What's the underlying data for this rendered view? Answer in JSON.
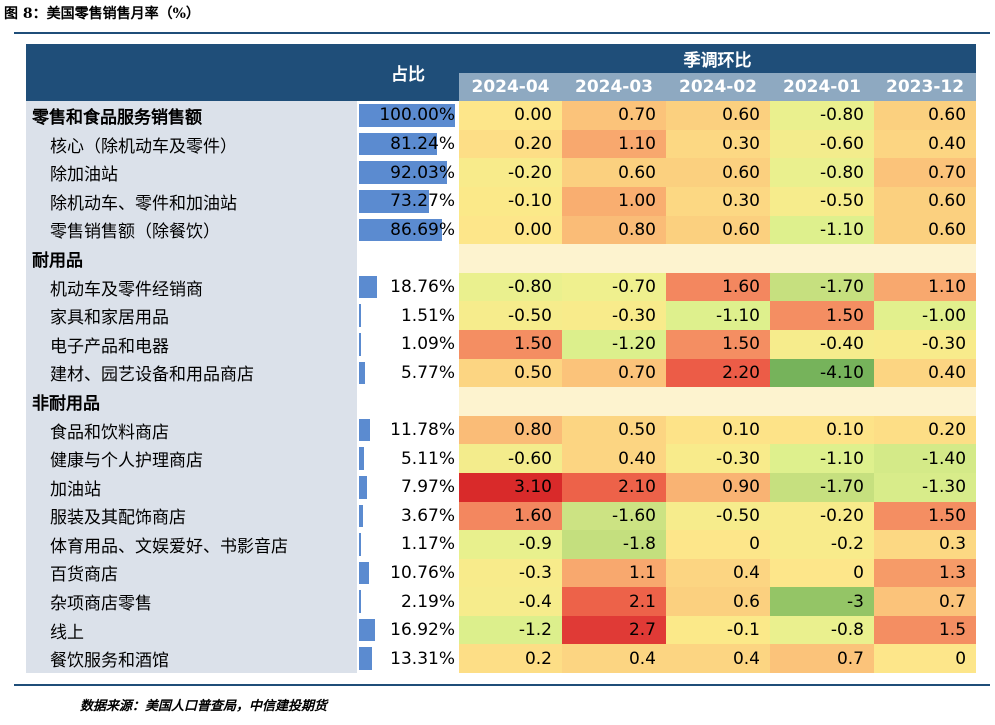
{
  "title": "图 8：美国零售销售月率（%）",
  "source": "数据来源：美国人口普查局，中信建投期货",
  "header": {
    "share": "占比",
    "group": "季调环比",
    "months": [
      "2024-04",
      "2024-03",
      "2024-02",
      "2024-01",
      "2023-12"
    ]
  },
  "rows": [
    {
      "label": "零售和食品服务销售额",
      "kind": "top",
      "pct": "100.00%",
      "share": 100.0,
      "values": [
        "0.00",
        "0.70",
        "0.60",
        "-0.80",
        "0.60"
      ],
      "colors": [
        "#fde68a",
        "#fbc37a",
        "#fbd07f",
        "#eaf08e",
        "#fbd07f"
      ]
    },
    {
      "label": "核心（除机动车及零件）",
      "kind": "sub",
      "pct": "81.24%",
      "share": 81.24,
      "values": [
        "0.20",
        "1.10",
        "0.30",
        "-0.60",
        "0.40"
      ],
      "colors": [
        "#fdde86",
        "#f8a86e",
        "#fcd883",
        "#f3ec8c",
        "#fcd582"
      ]
    },
    {
      "label": "除加油站",
      "kind": "sub",
      "pct": "92.03%",
      "share": 92.03,
      "values": [
        "-0.20",
        "0.60",
        "0.60",
        "-0.80",
        "0.70"
      ],
      "colors": [
        "#f8eb8b",
        "#fbd07f",
        "#fbd07f",
        "#eaf08e",
        "#fbc37a"
      ]
    },
    {
      "label": "除机动车、零件和加油站",
      "kind": "sub",
      "pct": "73.27%",
      "share": 73.27,
      "values": [
        "-0.10",
        "1.00",
        "0.30",
        "-0.50",
        "0.60"
      ],
      "colors": [
        "#fbe989",
        "#f9ae70",
        "#fcd883",
        "#f6ec8c",
        "#fbd07f"
      ]
    },
    {
      "label": "零售销售额（除餐饮）",
      "kind": "sub",
      "pct": "86.69%",
      "share": 86.69,
      "values": [
        "0.00",
        "0.80",
        "0.60",
        "-1.10",
        "0.60"
      ],
      "colors": [
        "#fde68a",
        "#fabc77",
        "#fbd07f",
        "#def08d",
        "#fbd07f"
      ]
    },
    {
      "label": "耐用品",
      "kind": "section"
    },
    {
      "label": "机动车及零件经销商",
      "kind": "sub",
      "pct": "18.76%",
      "share": 18.76,
      "values": [
        "-0.80",
        "-0.70",
        "1.60",
        "-1.70",
        "1.10"
      ],
      "colors": [
        "#eaf08e",
        "#eff08e",
        "#f3875f",
        "#c6e07f",
        "#f8a86e"
      ]
    },
    {
      "label": "家具和家居用品",
      "kind": "sub",
      "pct": "1.51%",
      "share": 1.51,
      "values": [
        "-0.50",
        "-0.30",
        "-1.10",
        "1.50",
        "-1.00"
      ],
      "colors": [
        "#f6ec8c",
        "#f8eb8b",
        "#def08d",
        "#f48e62",
        "#e2f08d"
      ]
    },
    {
      "label": "电子产品和电器",
      "kind": "sub",
      "pct": "1.09%",
      "share": 1.09,
      "values": [
        "1.50",
        "-1.20",
        "1.50",
        "-0.40",
        "-0.30"
      ],
      "colors": [
        "#f48e62",
        "#dcef8c",
        "#f48e62",
        "#f6ec8c",
        "#f8eb8b"
      ]
    },
    {
      "label": "建材、园艺设备和用品商店",
      "kind": "sub",
      "pct": "5.77%",
      "share": 5.77,
      "values": [
        "0.50",
        "0.70",
        "2.20",
        "-4.10",
        "0.40"
      ],
      "colors": [
        "#fcd582",
        "#fbc37a",
        "#ec5c47",
        "#76b35b",
        "#fcd582"
      ]
    },
    {
      "label": "非耐用品",
      "kind": "section"
    },
    {
      "label": "食品和饮料商店",
      "kind": "sub",
      "pct": "11.78%",
      "share": 11.78,
      "values": [
        "0.80",
        "0.50",
        "0.10",
        "0.10",
        "0.20"
      ],
      "colors": [
        "#fabc77",
        "#fcd582",
        "#fde388",
        "#fde388",
        "#fdde86"
      ]
    },
    {
      "label": "健康与个人护理商店",
      "kind": "sub",
      "pct": "5.11%",
      "share": 5.11,
      "values": [
        "-0.60",
        "0.40",
        "-0.30",
        "-1.10",
        "-1.40"
      ],
      "colors": [
        "#f3ec8c",
        "#fcd582",
        "#f8eb8b",
        "#def08d",
        "#d4ea88"
      ]
    },
    {
      "label": "加油站",
      "kind": "sub",
      "pct": "7.97%",
      "share": 7.97,
      "values": [
        "3.10",
        "2.10",
        "0.90",
        "-1.70",
        "-1.30"
      ],
      "colors": [
        "#d92a2a",
        "#ed6249",
        "#f9b373",
        "#c6e07f",
        "#d8ec8a"
      ]
    },
    {
      "label": "服装及其配饰商店",
      "kind": "sub",
      "pct": "3.67%",
      "share": 3.67,
      "values": [
        "1.60",
        "-1.60",
        "-0.50",
        "-0.20",
        "1.50"
      ],
      "colors": [
        "#f3875f",
        "#cce383",
        "#f6ec8c",
        "#f8eb8b",
        "#f48e62"
      ]
    },
    {
      "label": "体育用品、文娱爱好、书影音店",
      "kind": "sub",
      "pct": "1.17%",
      "share": 1.17,
      "values": [
        "-0.9",
        "-1.8",
        "0",
        "-0.2",
        "0.3"
      ],
      "colors": [
        "#e8f08d",
        "#c4df7e",
        "#fde68a",
        "#f8eb8b",
        "#fcd883"
      ]
    },
    {
      "label": "百货商店",
      "kind": "sub",
      "pct": "10.76%",
      "share": 10.76,
      "values": [
        "-0.3",
        "1.1",
        "0.4",
        "0",
        "1.3"
      ],
      "colors": [
        "#f8eb8b",
        "#f8a86e",
        "#fcd582",
        "#fde68a",
        "#f69b68"
      ]
    },
    {
      "label": "杂项商店零售",
      "kind": "sub",
      "pct": "2.19%",
      "share": 2.19,
      "values": [
        "-0.4",
        "2.1",
        "0.6",
        "-3",
        "0.7"
      ],
      "colors": [
        "#f6ec8c",
        "#ed6249",
        "#fbd07f",
        "#94c566",
        "#fbc37a"
      ]
    },
    {
      "label": "线上",
      "kind": "sub",
      "pct": "16.92%",
      "share": 16.92,
      "values": [
        "-1.2",
        "2.7",
        "-0.1",
        "-0.8",
        "1.5"
      ],
      "colors": [
        "#dcef8c",
        "#e03a36",
        "#fbe989",
        "#eaf08e",
        "#f48e62"
      ]
    },
    {
      "label": "餐饮服务和酒馆",
      "kind": "sub",
      "pct": "13.31%",
      "share": 13.31,
      "values": [
        "0.2",
        "0.4",
        "0.4",
        "0.7",
        "0"
      ],
      "colors": [
        "#fdde86",
        "#fcd582",
        "#fcd582",
        "#fbc37a",
        "#fde68a"
      ]
    }
  ]
}
